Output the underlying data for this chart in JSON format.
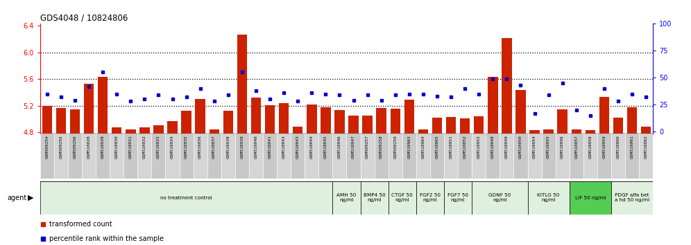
{
  "title": "GDS4048 / 10824806",
  "bar_color": "#cc2200",
  "dot_color": "#0000cc",
  "categories": [
    "GSM509254",
    "GSM509255",
    "GSM509256",
    "GSM510028",
    "GSM510029",
    "GSM510030",
    "GSM510031",
    "GSM510032",
    "GSM510033",
    "GSM510034",
    "GSM510035",
    "GSM510036",
    "GSM510037",
    "GSM510038",
    "GSM510039",
    "GSM510040",
    "GSM510041",
    "GSM510042",
    "GSM510043",
    "GSM510044",
    "GSM510045",
    "GSM510046",
    "GSM510047",
    "GSM509257",
    "GSM509258",
    "GSM509259",
    "GSM510063",
    "GSM510064",
    "GSM510065",
    "GSM510051",
    "GSM510052",
    "GSM510053",
    "GSM510048",
    "GSM510049",
    "GSM510050",
    "GSM510054",
    "GSM510055",
    "GSM510056",
    "GSM510057",
    "GSM510058",
    "GSM510059",
    "GSM510060",
    "GSM510061",
    "GSM510062"
  ],
  "bar_values": [
    5.2,
    5.16,
    5.14,
    5.53,
    5.63,
    4.87,
    4.84,
    4.87,
    4.9,
    4.97,
    5.12,
    5.3,
    4.84,
    5.12,
    6.27,
    5.32,
    5.21,
    5.24,
    4.88,
    5.22,
    5.18,
    5.13,
    5.05,
    5.05,
    5.17,
    5.15,
    5.29,
    4.84,
    5.02,
    5.03,
    5.01,
    5.04,
    5.63,
    6.22,
    5.44,
    4.83,
    4.84,
    5.14,
    4.84,
    4.83,
    5.33,
    5.02,
    5.18,
    4.88
  ],
  "dot_pct": [
    35,
    32,
    29,
    42,
    55,
    35,
    28,
    30,
    34,
    30,
    32,
    40,
    28,
    34,
    55,
    38,
    30,
    36,
    28,
    36,
    35,
    34,
    29,
    34,
    29,
    34,
    35,
    35,
    33,
    32,
    40,
    35,
    49,
    49,
    43,
    17,
    34,
    45,
    20,
    15,
    40,
    28,
    35,
    32
  ],
  "ylim_left": [
    4.78,
    6.44
  ],
  "ylim_right": [
    -1.64,
    100
  ],
  "yticks_left": [
    4.8,
    5.2,
    5.6,
    6.0,
    6.4
  ],
  "yticks_right": [
    0,
    25,
    50,
    75,
    100
  ],
  "hlines": [
    5.2,
    5.6,
    6.0
  ],
  "agent_groups": [
    {
      "label": "no treatment control",
      "start": 0,
      "end": 21,
      "color": "#dff0df"
    },
    {
      "label": "AMH 50\nng/ml",
      "start": 21,
      "end": 23,
      "color": "#dff0df"
    },
    {
      "label": "BMP4 50\nng/ml",
      "start": 23,
      "end": 25,
      "color": "#dff0df"
    },
    {
      "label": "CTGF 50\nng/ml",
      "start": 25,
      "end": 27,
      "color": "#dff0df"
    },
    {
      "label": "FGF2 50\nng/ml",
      "start": 27,
      "end": 29,
      "color": "#dff0df"
    },
    {
      "label": "FGF7 50\nng/ml",
      "start": 29,
      "end": 31,
      "color": "#dff0df"
    },
    {
      "label": "GDNF 50\nng/ml",
      "start": 31,
      "end": 35,
      "color": "#dff0df"
    },
    {
      "label": "KITLG 50\nng/ml",
      "start": 35,
      "end": 38,
      "color": "#dff0df"
    },
    {
      "label": "LIF 50 ng/ml",
      "start": 38,
      "end": 41,
      "color": "#55cc55"
    },
    {
      "label": "PDGF alfa bet\na hd 50 ng/ml",
      "start": 41,
      "end": 44,
      "color": "#dff0df"
    }
  ],
  "background_color": "#ffffff"
}
